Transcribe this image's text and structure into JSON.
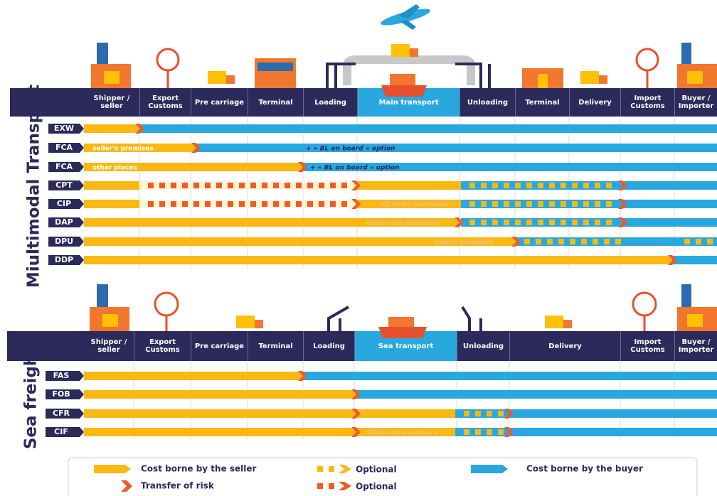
{
  "multimodal": {
    "title": "Miultimodal Transport",
    "columns": [
      "Shipper / seller",
      "Export Customs",
      "Pre carriage",
      "Terminal",
      "Loading",
      "Main transport",
      "Unloading",
      "Terminal",
      "Delivery",
      "Import Customs",
      "Buyer / Importer"
    ],
    "rows": [
      {
        "code": "EXW"
      },
      {
        "code": "FCA",
        "label": "seller's premises",
        "note": "+ « BL on board » option"
      },
      {
        "code": "FCA",
        "label": "other places",
        "note": "+ « BL on board » option"
      },
      {
        "code": "CPT"
      },
      {
        "code": "CIP",
        "note": "All Risks Insurance"
      },
      {
        "code": "DAP",
        "note": "Goods not unloaded"
      },
      {
        "code": "DPU",
        "note": "Goods unloaded"
      },
      {
        "code": "DDP"
      }
    ]
  },
  "sea_freight": {
    "title": "Sea freight",
    "columns": [
      "Shipper / seller",
      "Export Customs",
      "Pre carriage",
      "Terminal",
      "Loading",
      "Sea transport",
      "Unloading",
      "Delivery",
      "Import Customs",
      "Buyer / Importer"
    ],
    "rows": [
      {
        "code": "FAS"
      },
      {
        "code": "FOB"
      },
      {
        "code": "CFR"
      },
      {
        "code": "CIF",
        "note": "Minimum Insurance"
      }
    ]
  },
  "legend": [
    "Cost borne by the seller",
    "Optional",
    "Cost borne by the buyer",
    "Transfer of risk",
    "Optional"
  ]
}
